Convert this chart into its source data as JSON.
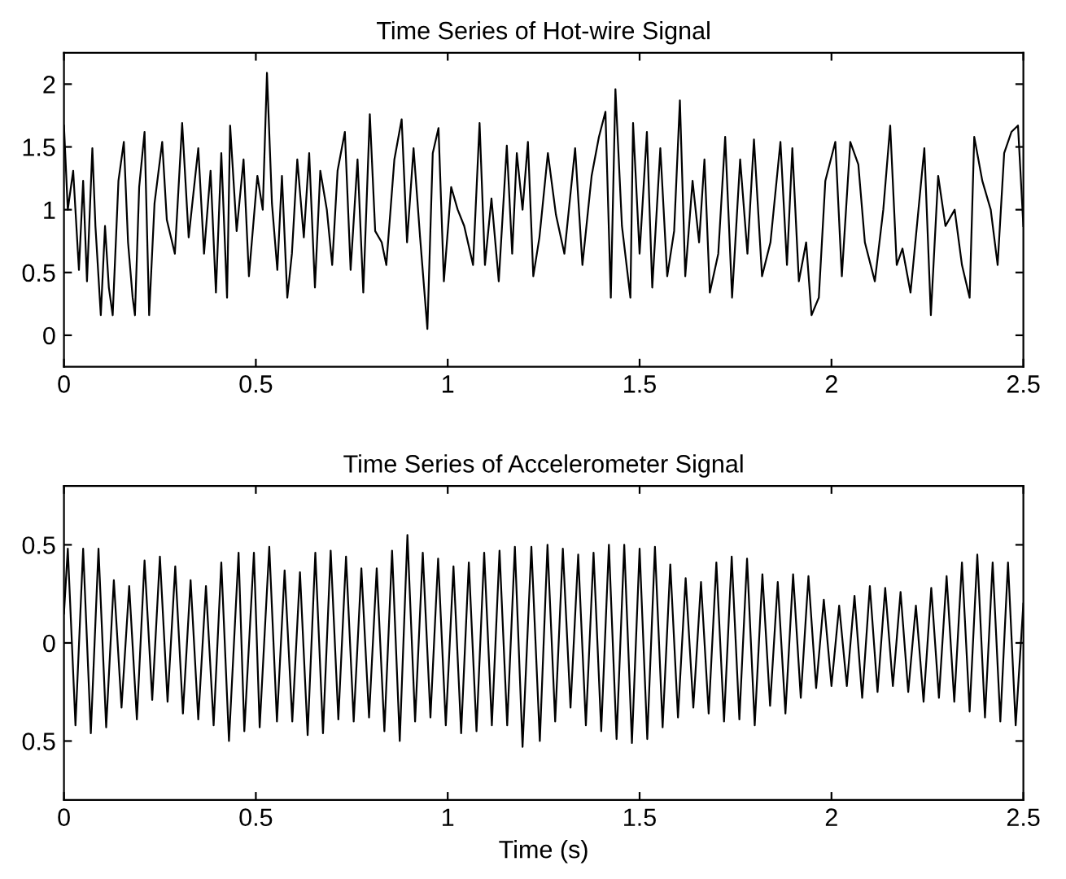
{
  "chart_data": [
    {
      "type": "line",
      "title": "Time Series of Hot-wire Signal",
      "xlim": [
        0,
        2.5
      ],
      "ylim": [
        -0.25,
        2.25
      ],
      "xticks": [
        0,
        0.5,
        1,
        1.5,
        2,
        2.5
      ],
      "yticks": [
        0,
        0.5,
        1,
        1.5,
        2
      ],
      "grid": false,
      "legend": false,
      "series": [
        {
          "color": "#000000",
          "x": [
            0,
            0.01,
            0.024,
            0.039,
            0.05,
            0.06,
            0.074,
            0.082,
            0.096,
            0.107,
            0.117,
            0.127,
            0.142,
            0.156,
            0.167,
            0.179,
            0.185,
            0.196,
            0.21,
            0.222,
            0.236,
            0.256,
            0.268,
            0.289,
            0.308,
            0.325,
            0.35,
            0.365,
            0.382,
            0.396,
            0.41,
            0.425,
            0.433,
            0.45,
            0.468,
            0.482,
            0.504,
            0.518,
            0.529,
            0.542,
            0.556,
            0.568,
            0.582,
            0.594,
            0.608,
            0.625,
            0.639,
            0.654,
            0.668,
            0.685,
            0.699,
            0.713,
            0.732,
            0.747,
            0.765,
            0.78,
            0.797,
            0.811,
            0.828,
            0.84,
            0.861,
            0.88,
            0.894,
            0.911,
            0.928,
            0.947,
            0.961,
            0.976,
            0.99,
            1.009,
            1.026,
            1.043,
            1.066,
            1.083,
            1.097,
            1.114,
            1.133,
            1.154,
            1.168,
            1.18,
            1.195,
            1.209,
            1.223,
            1.239,
            1.261,
            1.282,
            1.304,
            1.332,
            1.351,
            1.375,
            1.394,
            1.411,
            1.425,
            1.437,
            1.454,
            1.476,
            1.483,
            1.5,
            1.519,
            1.533,
            1.554,
            1.572,
            1.59,
            1.605,
            1.619,
            1.638,
            1.655,
            1.669,
            1.683,
            1.705,
            1.723,
            1.741,
            1.762,
            1.781,
            1.798,
            1.819,
            1.841,
            1.867,
            1.884,
            1.898,
            1.915,
            1.934,
            1.948,
            1.967,
            1.984,
            2.01,
            2.027,
            2.049,
            2.07,
            2.087,
            2.113,
            2.135,
            2.153,
            2.17,
            2.185,
            2.206,
            2.242,
            2.259,
            2.278,
            2.297,
            2.321,
            2.34,
            2.36,
            2.372,
            2.393,
            2.415,
            2.433,
            2.45,
            2.469,
            2.486,
            2.5
          ],
          "values": [
            1.67,
            1.0,
            1.31,
            0.52,
            1.23,
            0.43,
            1.49,
            0.87,
            0.16,
            0.87,
            0.38,
            0.16,
            1.23,
            1.54,
            0.74,
            0.3,
            0.16,
            1.18,
            1.62,
            0.16,
            1.05,
            1.54,
            0.92,
            0.65,
            1.69,
            0.78,
            1.49,
            0.65,
            1.31,
            0.34,
            1.45,
            0.3,
            1.67,
            0.83,
            1.4,
            0.47,
            1.27,
            1.0,
            2.09,
            1.05,
            0.52,
            1.27,
            0.3,
            0.65,
            1.4,
            0.78,
            1.45,
            0.38,
            1.31,
            1.0,
            0.56,
            1.31,
            1.62,
            0.52,
            1.4,
            0.34,
            1.76,
            0.83,
            0.74,
            0.56,
            1.4,
            1.72,
            0.74,
            1.49,
            0.78,
            0.05,
            1.45,
            1.65,
            0.43,
            1.18,
            1.0,
            0.87,
            0.56,
            1.69,
            0.56,
            1.09,
            0.43,
            1.51,
            0.65,
            1.45,
            1.0,
            1.54,
            0.47,
            0.78,
            1.45,
            0.96,
            0.65,
            1.49,
            0.56,
            1.27,
            1.58,
            1.78,
            0.3,
            1.96,
            0.87,
            0.3,
            1.69,
            0.65,
            1.62,
            0.38,
            1.49,
            0.47,
            0.83,
            1.87,
            0.47,
            1.23,
            0.74,
            1.4,
            0.34,
            0.65,
            1.58,
            0.3,
            1.4,
            0.65,
            1.56,
            0.47,
            0.74,
            1.54,
            0.56,
            1.49,
            0.43,
            0.74,
            0.16,
            0.3,
            1.23,
            1.54,
            0.47,
            1.54,
            1.36,
            0.74,
            0.43,
            1.0,
            1.67,
            0.56,
            0.69,
            0.34,
            1.49,
            0.16,
            1.27,
            0.87,
            1.0,
            0.56,
            0.3,
            1.58,
            1.23,
            1.0,
            0.56,
            1.45,
            1.62,
            1.67,
            0.87
          ]
        }
      ]
    },
    {
      "type": "line",
      "title": "Time Series of Accelerometer Signal",
      "xlabel": "Time (s)",
      "xlim": [
        0,
        2.5
      ],
      "ylim": [
        -0.8,
        0.8
      ],
      "xticks": [
        0,
        0.5,
        1,
        1.5,
        2,
        2.5
      ],
      "yticks": [
        {
          "value": -0.5,
          "label": "0.5"
        },
        0,
        0.5
      ],
      "grid": false,
      "legend": false,
      "series": [
        {
          "color": "#000000",
          "x": [
            0,
            0.01,
            0.03,
            0.05,
            0.07,
            0.09,
            0.11,
            0.13,
            0.15,
            0.17,
            0.19,
            0.21,
            0.23,
            0.25,
            0.27,
            0.29,
            0.31,
            0.33,
            0.35,
            0.37,
            0.39,
            0.41,
            0.43,
            0.455,
            0.47,
            0.495,
            0.51,
            0.535,
            0.555,
            0.575,
            0.595,
            0.615,
            0.635,
            0.655,
            0.675,
            0.695,
            0.715,
            0.735,
            0.755,
            0.775,
            0.795,
            0.815,
            0.835,
            0.855,
            0.875,
            0.895,
            0.915,
            0.935,
            0.955,
            0.975,
            0.995,
            1.015,
            1.035,
            1.055,
            1.075,
            1.095,
            1.115,
            1.135,
            1.155,
            1.175,
            1.195,
            1.218,
            1.24,
            1.26,
            1.28,
            1.3,
            1.32,
            1.34,
            1.36,
            1.38,
            1.4,
            1.42,
            1.44,
            1.46,
            1.48,
            1.5,
            1.52,
            1.54,
            1.56,
            1.58,
            1.6,
            1.62,
            1.64,
            1.66,
            1.68,
            1.7,
            1.72,
            1.74,
            1.76,
            1.78,
            1.8,
            1.82,
            1.84,
            1.86,
            1.88,
            1.9,
            1.92,
            1.94,
            1.96,
            1.98,
            2.0,
            2.02,
            2.04,
            2.06,
            2.08,
            2.1,
            2.12,
            2.14,
            2.16,
            2.18,
            2.2,
            2.22,
            2.24,
            2.26,
            2.28,
            2.3,
            2.32,
            2.34,
            2.36,
            2.38,
            2.4,
            2.42,
            2.44,
            2.46,
            2.48,
            2.5
          ],
          "values": [
            0.15,
            0.48,
            -0.42,
            0.48,
            -0.46,
            0.48,
            -0.43,
            0.32,
            -0.33,
            0.29,
            -0.39,
            0.42,
            -0.29,
            0.44,
            -0.3,
            0.39,
            -0.36,
            0.32,
            -0.39,
            0.29,
            -0.42,
            0.41,
            -0.5,
            0.46,
            -0.45,
            0.46,
            -0.43,
            0.49,
            -0.4,
            0.37,
            -0.4,
            0.36,
            -0.47,
            0.46,
            -0.46,
            0.47,
            -0.39,
            0.44,
            -0.4,
            0.38,
            -0.38,
            0.38,
            -0.45,
            0.47,
            -0.5,
            0.55,
            -0.4,
            0.46,
            -0.38,
            0.43,
            -0.42,
            0.39,
            -0.46,
            0.41,
            -0.45,
            0.46,
            -0.42,
            0.47,
            -0.42,
            0.49,
            -0.53,
            0.49,
            -0.5,
            0.5,
            -0.4,
            0.48,
            -0.33,
            0.45,
            -0.42,
            0.46,
            -0.45,
            0.5,
            -0.49,
            0.5,
            -0.51,
            0.48,
            -0.49,
            0.49,
            -0.43,
            0.4,
            -0.38,
            0.33,
            -0.33,
            0.31,
            -0.36,
            0.41,
            -0.4,
            0.44,
            -0.39,
            0.43,
            -0.42,
            0.35,
            -0.32,
            0.31,
            -0.36,
            0.35,
            -0.28,
            0.34,
            -0.23,
            0.22,
            -0.22,
            0.19,
            -0.22,
            0.24,
            -0.28,
            0.29,
            -0.25,
            0.28,
            -0.22,
            0.26,
            -0.25,
            0.19,
            -0.3,
            0.28,
            -0.28,
            0.34,
            -0.3,
            0.41,
            -0.35,
            0.45,
            -0.38,
            0.41,
            -0.4,
            0.41,
            -0.42,
            0.2
          ]
        }
      ]
    }
  ]
}
